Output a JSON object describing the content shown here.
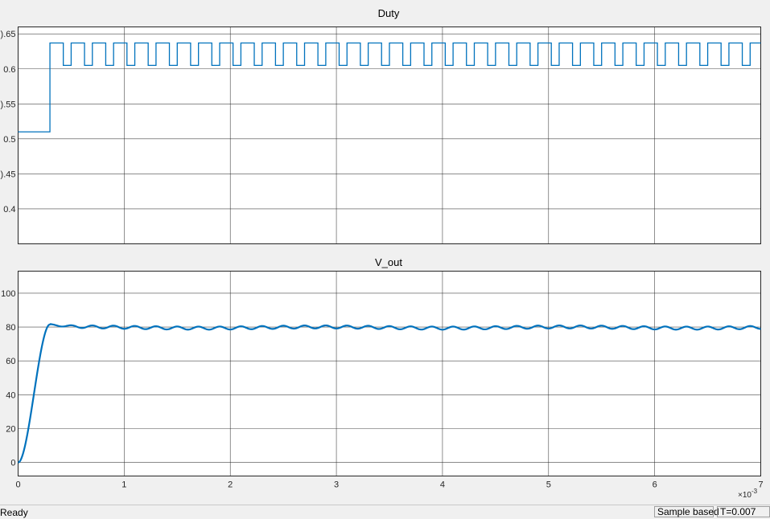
{
  "chart_data": [
    {
      "type": "line",
      "title": "Duty",
      "xlim": [
        0,
        7
      ],
      "ylim": [
        0.35,
        0.66
      ],
      "yticks": [
        0.4,
        0.45,
        0.5,
        0.55,
        0.6,
        0.65
      ],
      "ytick_labels": [
        "0.4",
        ").45",
        "0.5",
        ").55",
        "0.6",
        ").65"
      ],
      "xticks": [
        0,
        1,
        2,
        3,
        4,
        5,
        6,
        7
      ],
      "grid": true,
      "color": "#0072bd",
      "series": [
        {
          "initial_value": 0.51,
          "step_time": 0.3,
          "high_value": 0.637,
          "low_value": 0.605,
          "pulse_period": 0.2,
          "high_fraction": 0.63
        }
      ]
    },
    {
      "type": "line",
      "title": "V_out",
      "xlim": [
        0,
        7
      ],
      "ylim": [
        -8,
        113
      ],
      "yticks": [
        0,
        20,
        40,
        60,
        80,
        100
      ],
      "ytick_labels": [
        "0",
        "20",
        "40",
        "60",
        "80",
        "100"
      ],
      "xticks": [
        0,
        1,
        2,
        3,
        4,
        5,
        6,
        7
      ],
      "xtick_labels": [
        "0",
        "1",
        "2",
        "3",
        "4",
        "5",
        "6",
        "7"
      ],
      "x_exponent_label": "×10",
      "x_exponent_power": "-3",
      "grid": true,
      "color": "#0072bd",
      "series": [
        {
          "rise_end_time": 0.3,
          "peak_value": 81.5,
          "steady_value": 79.7,
          "ripple_amplitude": 0.9,
          "ripple_period": 0.2
        }
      ]
    }
  ],
  "statusbar": {
    "status": "Ready",
    "mode": "Sample based",
    "time": "T=0.007"
  }
}
